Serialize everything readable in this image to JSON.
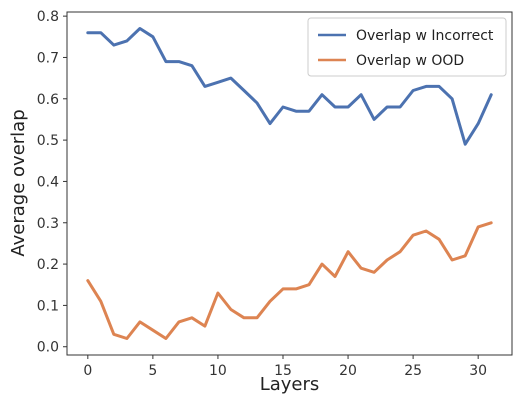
{
  "chart_data": {
    "type": "line",
    "title": "",
    "xlabel": "Layers",
    "ylabel": "Average overlap",
    "xlim": [
      -1.6,
      32.6
    ],
    "ylim": [
      -0.02,
      0.81
    ],
    "x_ticks": [
      0,
      5,
      10,
      15,
      20,
      25,
      30
    ],
    "y_ticks": [
      0.0,
      0.1,
      0.2,
      0.3,
      0.4,
      0.5,
      0.6,
      0.7,
      0.8
    ],
    "x_tick_labels": [
      "0",
      "5",
      "10",
      "15",
      "20",
      "25",
      "30"
    ],
    "y_tick_labels": [
      "0.0",
      "0.1",
      "0.2",
      "0.3",
      "0.4",
      "0.5",
      "0.6",
      "0.7",
      "0.8"
    ],
    "grid": false,
    "legend_position": "top-right",
    "x": [
      0,
      1,
      2,
      3,
      4,
      5,
      6,
      7,
      8,
      9,
      10,
      11,
      12,
      13,
      14,
      15,
      16,
      17,
      18,
      19,
      20,
      21,
      22,
      23,
      24,
      25,
      26,
      27,
      28,
      29,
      30,
      31
    ],
    "series": [
      {
        "name": "Overlap w Incorrect",
        "color": "#4c72b0",
        "values": [
          0.76,
          0.76,
          0.73,
          0.74,
          0.77,
          0.75,
          0.69,
          0.69,
          0.68,
          0.63,
          0.64,
          0.65,
          0.62,
          0.59,
          0.54,
          0.58,
          0.57,
          0.57,
          0.61,
          0.58,
          0.58,
          0.61,
          0.55,
          0.58,
          0.58,
          0.62,
          0.63,
          0.63,
          0.6,
          0.49,
          0.54,
          0.61
        ]
      },
      {
        "name": "Overlap w OOD",
        "color": "#dd8452",
        "values": [
          0.16,
          0.11,
          0.03,
          0.02,
          0.06,
          0.04,
          0.02,
          0.06,
          0.07,
          0.05,
          0.13,
          0.09,
          0.07,
          0.07,
          0.11,
          0.14,
          0.14,
          0.15,
          0.2,
          0.17,
          0.23,
          0.19,
          0.18,
          0.21,
          0.23,
          0.27,
          0.28,
          0.26,
          0.21,
          0.22,
          0.29,
          0.3
        ]
      }
    ]
  }
}
